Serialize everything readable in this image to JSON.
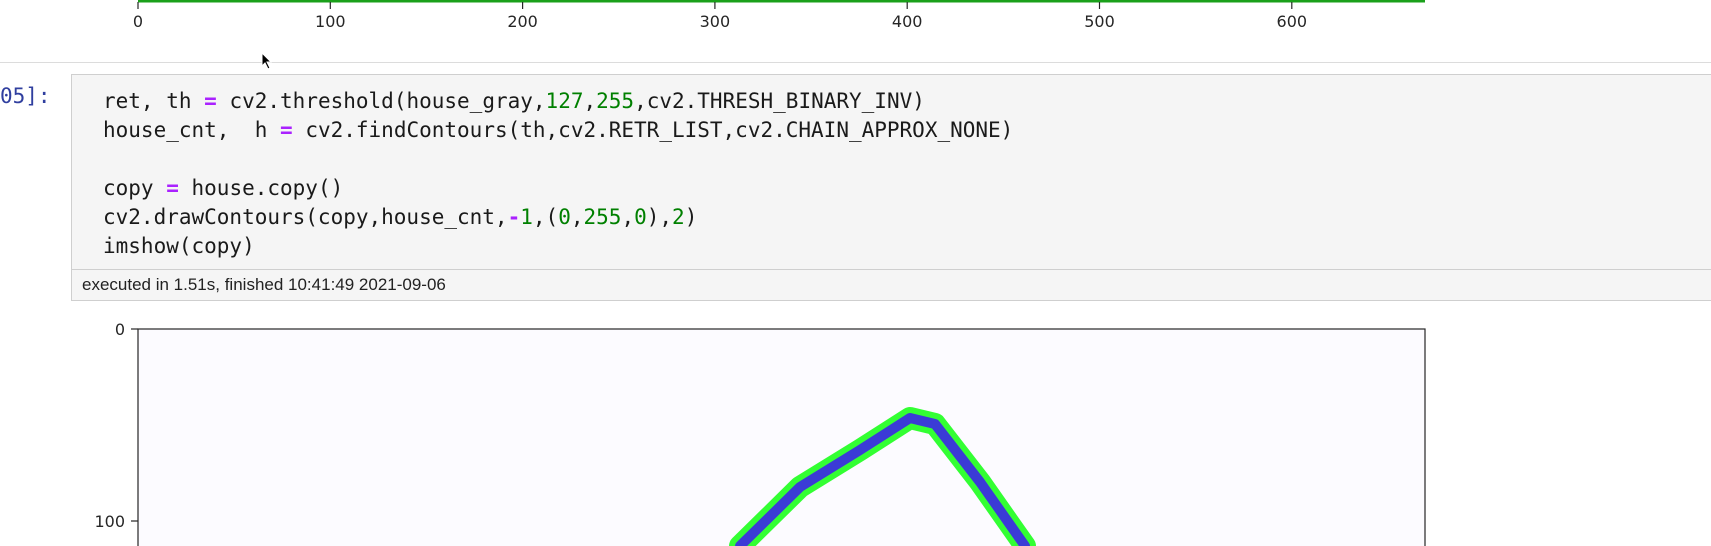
{
  "top_plot": {
    "x_ticks": [
      "0",
      "100",
      "200",
      "300",
      "400",
      "500",
      "600"
    ]
  },
  "cell": {
    "prompt": "05]:",
    "code": [
      [
        {
          "t": "ret, th ",
          "c": ""
        },
        {
          "t": "=",
          "c": "op"
        },
        {
          "t": " cv2.threshold(house_gray,",
          "c": ""
        },
        {
          "t": "127",
          "c": "num"
        },
        {
          "t": ",",
          "c": ""
        },
        {
          "t": "255",
          "c": "num"
        },
        {
          "t": ",cv2.THRESH_BINARY_INV)",
          "c": ""
        }
      ],
      [
        {
          "t": "house_cnt,  h ",
          "c": ""
        },
        {
          "t": "=",
          "c": "op"
        },
        {
          "t": " cv2.findContours(th,cv2.RETR_LIST,cv2.CHAIN_APPROX_NONE)",
          "c": ""
        }
      ],
      [
        {
          "t": "",
          "c": ""
        }
      ],
      [
        {
          "t": "copy ",
          "c": ""
        },
        {
          "t": "=",
          "c": "op"
        },
        {
          "t": " house.copy()",
          "c": ""
        }
      ],
      [
        {
          "t": "cv2.drawContours(copy,house_cnt,",
          "c": ""
        },
        {
          "t": "-",
          "c": "op"
        },
        {
          "t": "1",
          "c": "num"
        },
        {
          "t": ",(",
          "c": ""
        },
        {
          "t": "0",
          "c": "num"
        },
        {
          "t": ",",
          "c": ""
        },
        {
          "t": "255",
          "c": "num"
        },
        {
          "t": ",",
          "c": ""
        },
        {
          "t": "0",
          "c": "num"
        },
        {
          "t": "),",
          "c": ""
        },
        {
          "t": "2",
          "c": "num"
        },
        {
          "t": ")",
          "c": ""
        }
      ],
      [
        {
          "t": "imshow(copy)",
          "c": ""
        }
      ]
    ],
    "execution_info": "executed in 1.51s, finished 10:41:49 2021-09-06"
  },
  "bottom_plot": {
    "y_ticks": [
      "0",
      "100"
    ]
  },
  "colors": {
    "contour_outer": "#33ff33",
    "contour_inner": "#3b3bd6",
    "axis_line_top": "#1aa01a"
  }
}
